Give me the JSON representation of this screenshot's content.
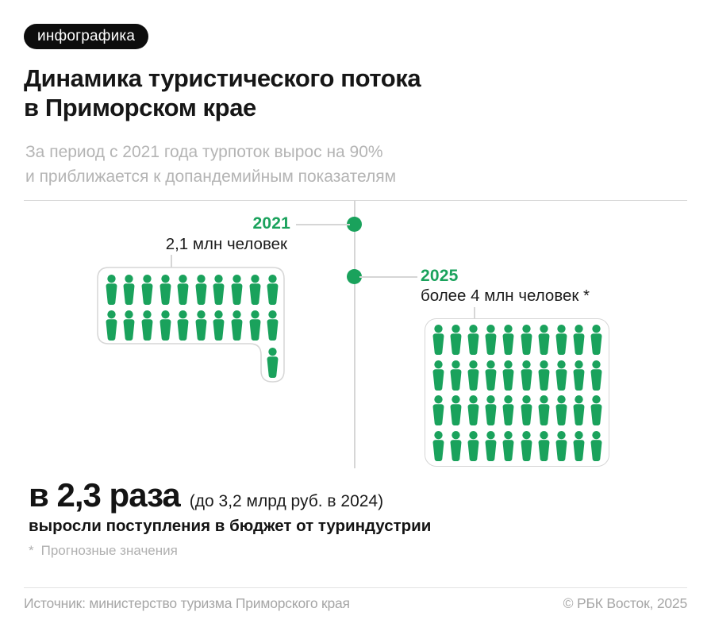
{
  "badge": {
    "label": "инфографика"
  },
  "header": {
    "title_line1": "Динамика туристического потока",
    "title_line2": "в Приморском крае",
    "subtitle_line1": "За период с 2021 года турпоток вырос на 90%",
    "subtitle_line2": "и приближается к допандемийным показателям"
  },
  "timeline": {
    "y2021": {
      "year": "2021",
      "value_label": "2,1 млн человек",
      "icon_count": 21
    },
    "y2025": {
      "year": "2025",
      "value_label": "более 4 млн человек *",
      "icon_count": 40
    }
  },
  "stat": {
    "multiplier": "в 2,3 раза",
    "detail": "(до 3,2 млрд руб. в 2024)",
    "description": "выросли поступления в бюджет от туриндустрии"
  },
  "footnote": {
    "mark": "*",
    "text": "Прогнозные значения"
  },
  "footer": {
    "source": "Источник: министерство туризма Приморского края",
    "copyright": "© РБК Восток, 2025"
  },
  "colors": {
    "green": "#1aa25c",
    "text": "#161616",
    "muted": "#b4b4b4",
    "line": "#d6d6d6",
    "footer_text": "#a6a6a6",
    "badge_bg": "#0d0d0d"
  },
  "chart_data": {
    "type": "pictogram",
    "title": "Динамика туристического потока в Приморском крае",
    "subtitle": "За период с 2021 года турпоток вырос на 90% и приближается к допандемийным показателям",
    "categories": [
      "2021",
      "2025"
    ],
    "values_mln_people": [
      2.1,
      4.0
    ],
    "value_labels": [
      "2,1 млн человек",
      "более 4 млн человек *"
    ],
    "icon_counts": [
      21,
      40
    ],
    "person_icon_unit_mln": 0.1,
    "growth_percent": 90,
    "budget_annotation": "в 2,3 раза (до 3,2 млрд руб. в 2024) выросли поступления в бюджет от туриндустрии",
    "footnote": "* Прогнозные значения",
    "source": "Источник: министерство туризма Приморского края",
    "legend_position": "none",
    "grid": false
  }
}
